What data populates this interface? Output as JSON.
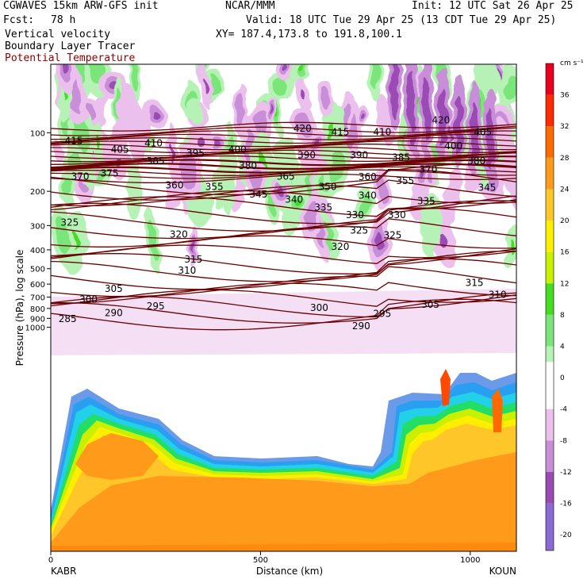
{
  "header": {
    "model": "CGWAVES 15km ARW-GFS init",
    "org": "NCAR/MMM",
    "init": "Init: 12 UTC Sat 26 Apr 25",
    "fcst_label": "Fcst:",
    "fcst_value": "78 h",
    "valid": "Valid: 18 UTC Tue 29 Apr 25 (13 CDT Tue 29 Apr 25)",
    "field1": "Vertical velocity",
    "field2": "Boundary Layer Tracer",
    "field3": "Potential Temperature",
    "xy": "XY= 187.4,173.8 to 191.8,100.1",
    "field3_color": "#8b0000"
  },
  "chart_data": {
    "type": "heatmap",
    "xlabel": "Distance (km)",
    "ylabel": "Pressure (hPa), log scale",
    "x_range": [
      0,
      1110
    ],
    "x_ticks": [
      0,
      500,
      1000
    ],
    "x_endpoints": {
      "left": "KABR",
      "right": "KOUN"
    },
    "y_ticks": [
      "100",
      "200",
      "300",
      "400",
      "500",
      "600",
      "700",
      "800",
      "900",
      "1000"
    ],
    "y_tick_values": [
      100,
      200,
      300,
      400,
      500,
      600,
      700,
      800,
      900,
      1000
    ],
    "colorbar": {
      "unit": "cm s⁻¹",
      "tick_labels": [
        "36",
        "32",
        "28",
        "24",
        "20",
        "16",
        "12",
        "8",
        "4",
        "0",
        "-4",
        "-8",
        "-12",
        "-16",
        "-20"
      ],
      "tick_values": [
        36,
        32,
        28,
        24,
        20,
        16,
        12,
        8,
        4,
        0,
        -4,
        -8,
        -12,
        -16,
        -20
      ],
      "range": [
        -22,
        40
      ],
      "stops": [
        {
          "v": 40,
          "c": "#e8001c"
        },
        {
          "v": 36,
          "c": "#ff2a00"
        },
        {
          "v": 32,
          "c": "#ff6a00"
        },
        {
          "v": 28,
          "c": "#ff9a1a"
        },
        {
          "v": 24,
          "c": "#ffc62a"
        },
        {
          "v": 20,
          "c": "#ffee00"
        },
        {
          "v": 16,
          "c": "#c8f000"
        },
        {
          "v": 12,
          "c": "#44dd22"
        },
        {
          "v": 8,
          "c": "#7ae67a"
        },
        {
          "v": 4,
          "c": "#b6f2b6"
        },
        {
          "v": 2,
          "c": "#ffffff"
        },
        {
          "v": -2,
          "c": "#ffffff"
        },
        {
          "v": -4,
          "c": "#ecc0ec"
        },
        {
          "v": -8,
          "c": "#c88ed8"
        },
        {
          "v": -12,
          "c": "#9a4cb4"
        },
        {
          "v": -16,
          "c": "#8c6ad4"
        },
        {
          "v": -22,
          "c": "#8a9af0"
        }
      ]
    },
    "theta_labels": [
      {
        "x": 55,
        "p": 110,
        "t": "415"
      },
      {
        "x": 165,
        "p": 122,
        "t": "405"
      },
      {
        "x": 245,
        "p": 113,
        "t": "410"
      },
      {
        "x": 345,
        "p": 127,
        "t": "395"
      },
      {
        "x": 445,
        "p": 122,
        "t": "400"
      },
      {
        "x": 600,
        "p": 95,
        "t": "420"
      },
      {
        "x": 690,
        "p": 99,
        "t": "415"
      },
      {
        "x": 790,
        "p": 99,
        "t": "410"
      },
      {
        "x": 930,
        "p": 86,
        "t": "420"
      },
      {
        "x": 1030,
        "p": 99,
        "t": "405"
      },
      {
        "x": 960,
        "p": 117,
        "t": "400"
      },
      {
        "x": 610,
        "p": 130,
        "t": "390"
      },
      {
        "x": 735,
        "p": 130,
        "t": "390"
      },
      {
        "x": 835,
        "p": 134,
        "t": "385"
      },
      {
        "x": 250,
        "p": 140,
        "t": "385"
      },
      {
        "x": 470,
        "p": 148,
        "t": "380"
      },
      {
        "x": 1015,
        "p": 140,
        "t": "380"
      },
      {
        "x": 900,
        "p": 154,
        "t": "370"
      },
      {
        "x": 70,
        "p": 168,
        "t": "370"
      },
      {
        "x": 140,
        "p": 162,
        "t": "375"
      },
      {
        "x": 560,
        "p": 168,
        "t": "365"
      },
      {
        "x": 755,
        "p": 169,
        "t": "360"
      },
      {
        "x": 295,
        "p": 186,
        "t": "360"
      },
      {
        "x": 390,
        "p": 190,
        "t": "355"
      },
      {
        "x": 845,
        "p": 177,
        "t": "355"
      },
      {
        "x": 1040,
        "p": 191,
        "t": "345"
      },
      {
        "x": 660,
        "p": 190,
        "t": "350"
      },
      {
        "x": 495,
        "p": 207,
        "t": "345"
      },
      {
        "x": 580,
        "p": 220,
        "t": "340"
      },
      {
        "x": 755,
        "p": 210,
        "t": "340"
      },
      {
        "x": 650,
        "p": 242,
        "t": "335"
      },
      {
        "x": 895,
        "p": 225,
        "t": "335"
      },
      {
        "x": 725,
        "p": 265,
        "t": "330"
      },
      {
        "x": 825,
        "p": 265,
        "t": "330"
      },
      {
        "x": 45,
        "p": 290,
        "t": "325"
      },
      {
        "x": 735,
        "p": 318,
        "t": "325"
      },
      {
        "x": 815,
        "p": 337,
        "t": "325"
      },
      {
        "x": 305,
        "p": 333,
        "t": "320"
      },
      {
        "x": 690,
        "p": 386,
        "t": "320"
      },
      {
        "x": 340,
        "p": 447,
        "t": "315"
      },
      {
        "x": 325,
        "p": 510,
        "t": "310"
      },
      {
        "x": 1010,
        "p": 590,
        "t": "315"
      },
      {
        "x": 150,
        "p": 635,
        "t": "305"
      },
      {
        "x": 1065,
        "p": 680,
        "t": "310"
      },
      {
        "x": 90,
        "p": 720,
        "t": "300"
      },
      {
        "x": 905,
        "p": 765,
        "t": "305"
      },
      {
        "x": 250,
        "p": 778,
        "t": "295"
      },
      {
        "x": 640,
        "p": 795,
        "t": "300"
      },
      {
        "x": 790,
        "p": 850,
        "t": "295"
      },
      {
        "x": 150,
        "p": 845,
        "t": "290"
      },
      {
        "x": 40,
        "p": 905,
        "t": "285"
      },
      {
        "x": 740,
        "p": 985,
        "t": "290"
      }
    ]
  }
}
